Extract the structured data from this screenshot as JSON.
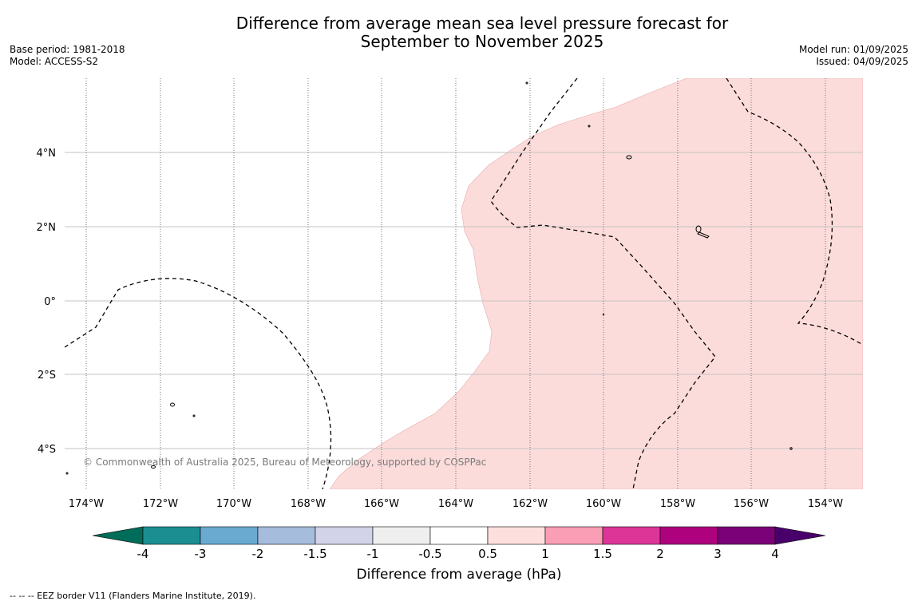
{
  "header": {
    "title_line1": "Difference from average mean sea level pressure forecast for",
    "title_line2": "September to November 2025",
    "base_period": "Base period: 1981-2018",
    "model": "Model: ACCESS-S2",
    "model_run": "Model run: 01/09/2025",
    "issued": "Issued: 04/09/2025"
  },
  "map": {
    "lon_labels": [
      "174°W",
      "172°W",
      "170°W",
      "168°W",
      "166°W",
      "164°W",
      "162°W",
      "160°W",
      "158°W",
      "156°W",
      "154°W"
    ],
    "lat_labels": [
      "4°N",
      "2°N",
      "0°",
      "2°S",
      "4°S"
    ],
    "copyright": "© Commonwealth of Australia 2025, Bureau of Meteorology, supported by COSPPac",
    "fill_color": "#fcdcdb"
  },
  "colorbar": {
    "ticks": [
      "-4",
      "-3",
      "-2",
      "-1.5",
      "-1",
      "-0.5",
      "0.5",
      "1",
      "1.5",
      "2",
      "3",
      "4"
    ],
    "colors": [
      "#1b8e92",
      "#6aa9d0",
      "#a6bcdd",
      "#d2d3e8",
      "#efefef",
      "#ffffff",
      "#fde0dd",
      "#f99eb5",
      "#dd3597",
      "#ae017e",
      "#7a0177"
    ],
    "under_color": "#016c59",
    "over_color": "#49006a",
    "label": "Difference from average (hPa)"
  },
  "footnote": "--  --  -- EEZ border V11 (Flanders Marine Institute, 2019)."
}
